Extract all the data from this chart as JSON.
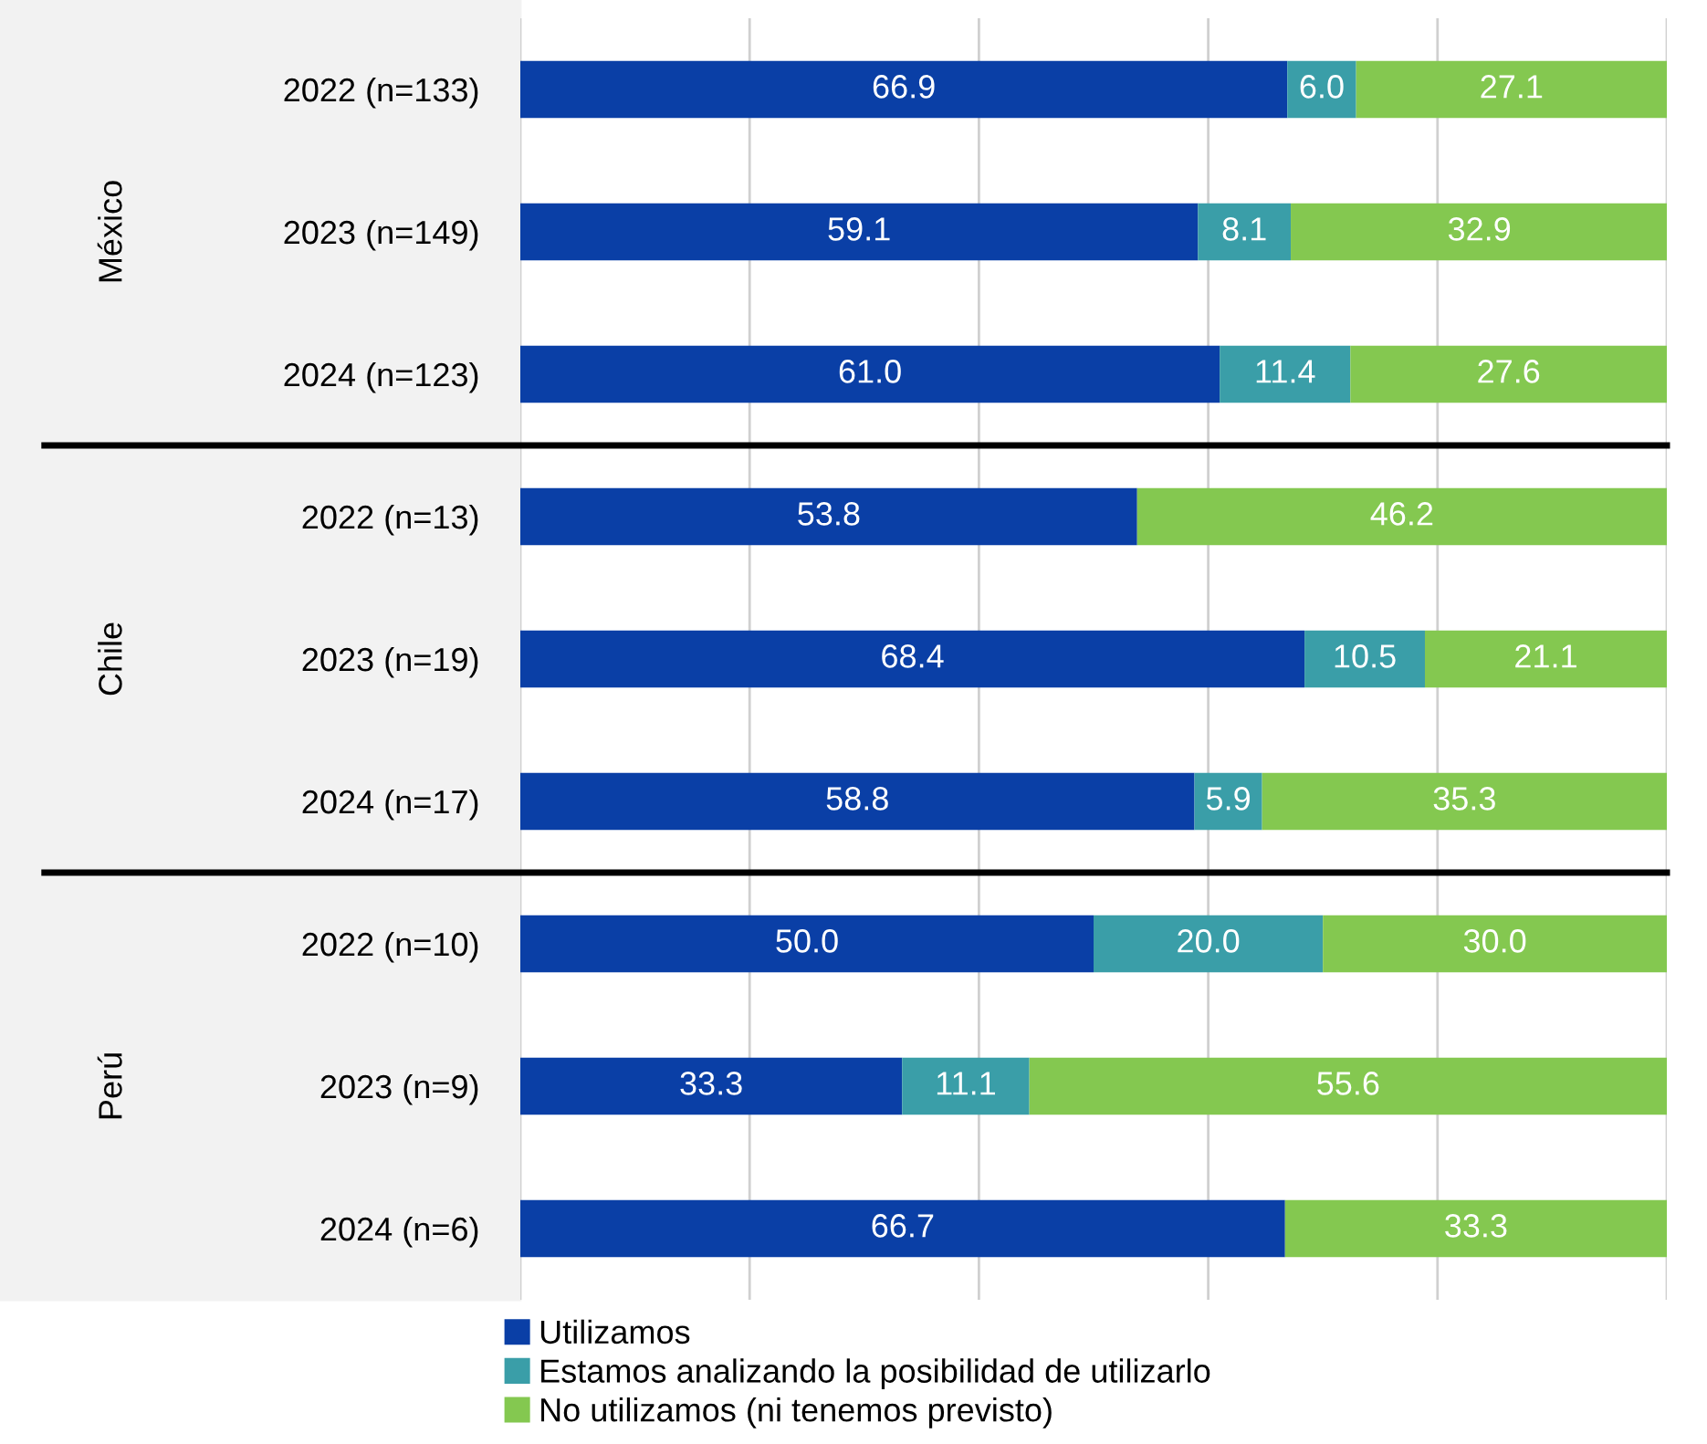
{
  "chart_data": {
    "type": "bar",
    "orientation": "horizontal",
    "stacked": true,
    "grid": "x",
    "legend": "bottom left",
    "tick_labels": "y",
    "categories": [
      "2022 (n=133)",
      "2023 (n=149)",
      "2024 (n=123)",
      "2022 (n=13)",
      "2023 (n=19)",
      "2024 (n=17)",
      "2022 (n=10)",
      "2023 (n=9)",
      "2024 (n=6)"
    ],
    "xlim": [
      0,
      100
    ],
    "xticks": [
      {
        "value": 0,
        "label": null
      },
      {
        "value": 20,
        "label": null
      },
      {
        "value": 40,
        "label": null
      },
      {
        "value": 60,
        "label": null
      },
      {
        "value": 80,
        "label": null
      },
      {
        "value": 100,
        "label": null
      }
    ],
    "series": [
      {
        "name": "Utilizamos",
        "color": "#0a3fa6",
        "values": [
          66.9,
          59.1,
          61.0,
          53.8,
          68.4,
          58.8,
          50.0,
          33.3,
          66.7
        ],
        "value_labels": [
          "66.9",
          "59.1",
          "61.0",
          "53.8",
          "68.4",
          "58.8",
          "50.0",
          "33.3",
          "66.7"
        ]
      },
      {
        "name": "Estamos analizando la posibilidad de utilizarlo",
        "color": "#3a9ea8",
        "values": [
          6.0,
          8.1,
          11.4,
          null,
          10.5,
          5.9,
          20.0,
          11.1,
          null
        ],
        "value_labels": [
          "6.0",
          "8.1",
          "11.4",
          null,
          "10.5",
          "5.9",
          "20.0",
          "11.1",
          null
        ]
      },
      {
        "name": "No utilizamos (ni tenemos previsto)",
        "color": "#84c850",
        "values": [
          27.1,
          32.9,
          27.6,
          46.2,
          21.1,
          35.3,
          30.0,
          55.6,
          33.3
        ],
        "value_labels": [
          "27.1",
          "32.9",
          "27.6",
          "46.2",
          "21.1",
          "35.3",
          "30.0",
          "55.6",
          "33.3"
        ]
      }
    ],
    "annotations": [
      "México",
      "Chile",
      "Perú"
    ]
  }
}
